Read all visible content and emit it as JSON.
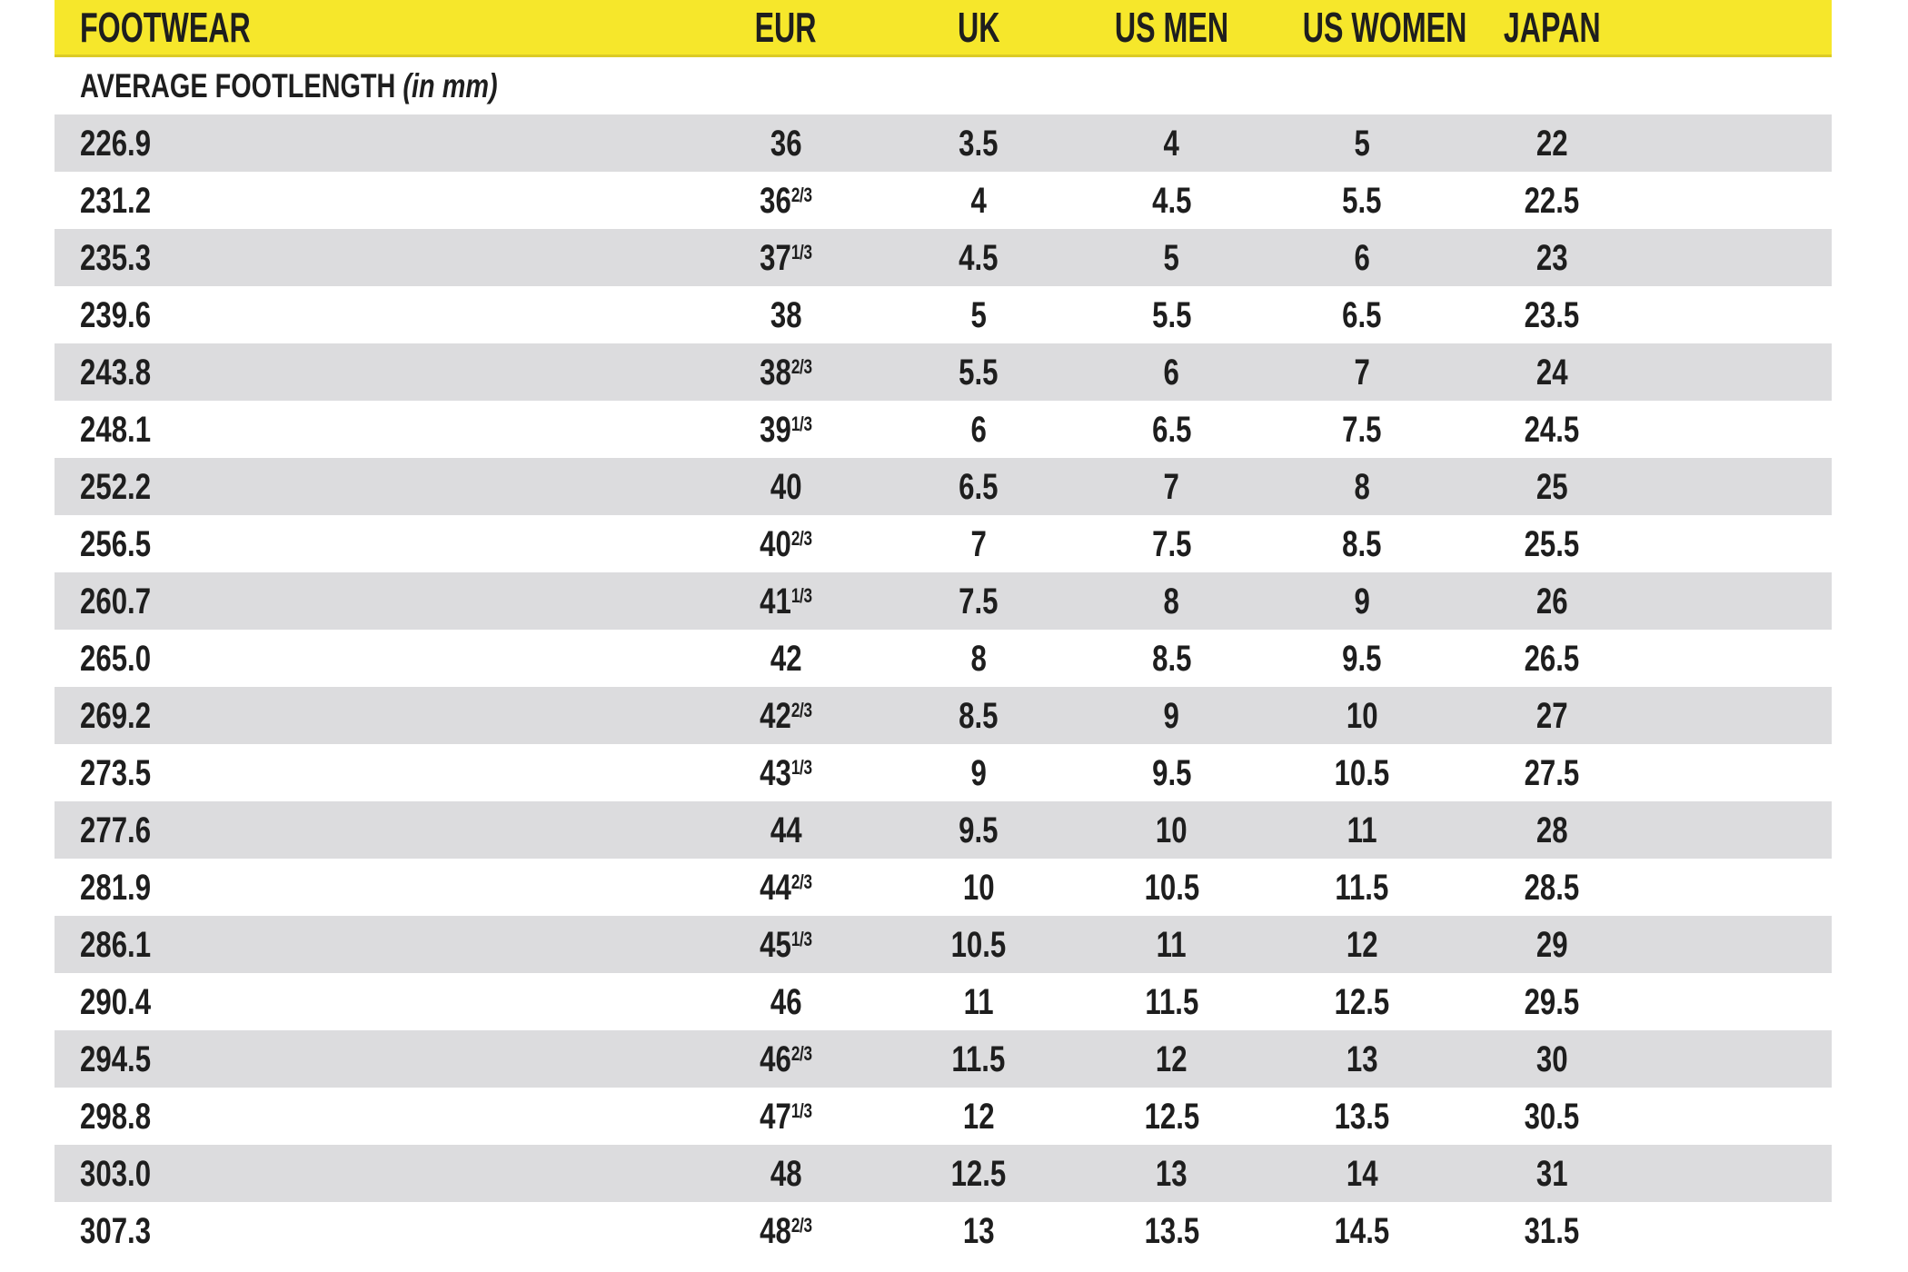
{
  "colors": {
    "header_bg": "#F6E72B",
    "header_edge": "#DCCB25",
    "alt_row_bg": "#DCDCDE",
    "text": "#1E1E1E"
  },
  "header": {
    "footwear": "FOOTWEAR",
    "eur": "EUR",
    "uk": "UK",
    "us_men": "US MEN",
    "us_women": "US WOMEN",
    "japan": "JAPAN"
  },
  "subheader": {
    "label": "AVERAGE FOOTLENGTH",
    "unit": "(in mm)"
  },
  "rows": [
    {
      "footlength_mm": "226.9",
      "eur": "36",
      "eur_frac": "",
      "uk": "3.5",
      "us_men": "4",
      "us_women": "5",
      "japan": "22"
    },
    {
      "footlength_mm": "231.2",
      "eur": "36",
      "eur_frac": "2/3",
      "uk": "4",
      "us_men": "4.5",
      "us_women": "5.5",
      "japan": "22.5"
    },
    {
      "footlength_mm": "235.3",
      "eur": "37",
      "eur_frac": "1/3",
      "uk": "4.5",
      "us_men": "5",
      "us_women": "6",
      "japan": "23"
    },
    {
      "footlength_mm": "239.6",
      "eur": "38",
      "eur_frac": "",
      "uk": "5",
      "us_men": "5.5",
      "us_women": "6.5",
      "japan": "23.5"
    },
    {
      "footlength_mm": "243.8",
      "eur": "38",
      "eur_frac": "2/3",
      "uk": "5.5",
      "us_men": "6",
      "us_women": "7",
      "japan": "24"
    },
    {
      "footlength_mm": "248.1",
      "eur": "39",
      "eur_frac": "1/3",
      "uk": "6",
      "us_men": "6.5",
      "us_women": "7.5",
      "japan": "24.5"
    },
    {
      "footlength_mm": "252.2",
      "eur": "40",
      "eur_frac": "",
      "uk": "6.5",
      "us_men": "7",
      "us_women": "8",
      "japan": "25"
    },
    {
      "footlength_mm": "256.5",
      "eur": "40",
      "eur_frac": "2/3",
      "uk": "7",
      "us_men": "7.5",
      "us_women": "8.5",
      "japan": "25.5"
    },
    {
      "footlength_mm": "260.7",
      "eur": "41",
      "eur_frac": "1/3",
      "uk": "7.5",
      "us_men": "8",
      "us_women": "9",
      "japan": "26"
    },
    {
      "footlength_mm": "265.0",
      "eur": "42",
      "eur_frac": "",
      "uk": "8",
      "us_men": "8.5",
      "us_women": "9.5",
      "japan": "26.5"
    },
    {
      "footlength_mm": "269.2",
      "eur": "42",
      "eur_frac": "2/3",
      "uk": "8.5",
      "us_men": "9",
      "us_women": "10",
      "japan": "27"
    },
    {
      "footlength_mm": "273.5",
      "eur": "43",
      "eur_frac": "1/3",
      "uk": "9",
      "us_men": "9.5",
      "us_women": "10.5",
      "japan": "27.5"
    },
    {
      "footlength_mm": "277.6",
      "eur": "44",
      "eur_frac": "",
      "uk": "9.5",
      "us_men": "10",
      "us_women": "11",
      "japan": "28"
    },
    {
      "footlength_mm": "281.9",
      "eur": "44",
      "eur_frac": "2/3",
      "uk": "10",
      "us_men": "10.5",
      "us_women": "11.5",
      "japan": "28.5"
    },
    {
      "footlength_mm": "286.1",
      "eur": "45",
      "eur_frac": "1/3",
      "uk": "10.5",
      "us_men": "11",
      "us_women": "12",
      "japan": "29"
    },
    {
      "footlength_mm": "290.4",
      "eur": "46",
      "eur_frac": "",
      "uk": "11",
      "us_men": "11.5",
      "us_women": "12.5",
      "japan": "29.5"
    },
    {
      "footlength_mm": "294.5",
      "eur": "46",
      "eur_frac": "2/3",
      "uk": "11.5",
      "us_men": "12",
      "us_women": "13",
      "japan": "30"
    },
    {
      "footlength_mm": "298.8",
      "eur": "47",
      "eur_frac": "1/3",
      "uk": "12",
      "us_men": "12.5",
      "us_women": "13.5",
      "japan": "30.5"
    },
    {
      "footlength_mm": "303.0",
      "eur": "48",
      "eur_frac": "",
      "uk": "12.5",
      "us_men": "13",
      "us_women": "14",
      "japan": "31"
    },
    {
      "footlength_mm": "307.3",
      "eur": "48",
      "eur_frac": "2/3",
      "uk": "13",
      "us_men": "13.5",
      "us_women": "14.5",
      "japan": "31.5"
    }
  ]
}
